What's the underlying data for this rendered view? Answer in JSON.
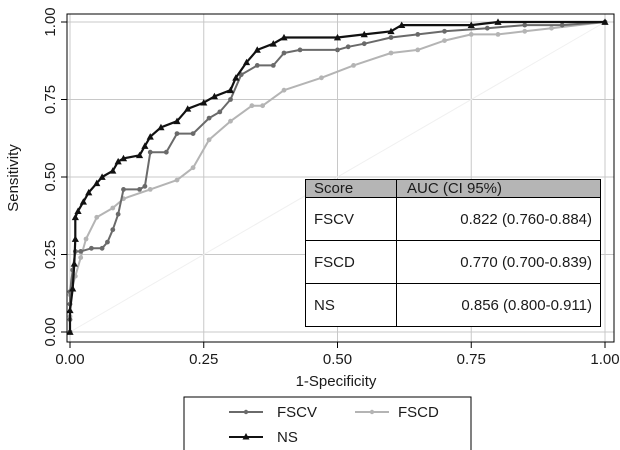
{
  "chart_data": {
    "type": "line",
    "title": "",
    "xlabel": "1-Specificity",
    "ylabel": "Sensitivity",
    "xlim": [
      0,
      1
    ],
    "ylim": [
      0,
      1
    ],
    "x_ticks": [
      "0.00",
      "0.25",
      "0.50",
      "0.75",
      "1.00"
    ],
    "y_ticks": [
      "0.00",
      "0.25",
      "0.50",
      "0.75",
      "1.00"
    ],
    "grid": true,
    "legend_position": "bottom",
    "series": [
      {
        "name": "FSCV",
        "color": "#6a6a6a",
        "marker": "circle",
        "points": [
          [
            0,
            0
          ],
          [
            0,
            0.04
          ],
          [
            0,
            0.09
          ],
          [
            0,
            0.13
          ],
          [
            0.005,
            0.2
          ],
          [
            0.01,
            0.26
          ],
          [
            0.02,
            0.26
          ],
          [
            0.04,
            0.27
          ],
          [
            0.06,
            0.27
          ],
          [
            0.07,
            0.29
          ],
          [
            0.08,
            0.33
          ],
          [
            0.09,
            0.38
          ],
          [
            0.1,
            0.46
          ],
          [
            0.13,
            0.46
          ],
          [
            0.14,
            0.47
          ],
          [
            0.15,
            0.58
          ],
          [
            0.18,
            0.58
          ],
          [
            0.2,
            0.64
          ],
          [
            0.23,
            0.64
          ],
          [
            0.26,
            0.69
          ],
          [
            0.28,
            0.71
          ],
          [
            0.3,
            0.75
          ],
          [
            0.32,
            0.83
          ],
          [
            0.35,
            0.86
          ],
          [
            0.38,
            0.86
          ],
          [
            0.4,
            0.9
          ],
          [
            0.43,
            0.91
          ],
          [
            0.5,
            0.91
          ],
          [
            0.52,
            0.92
          ],
          [
            0.55,
            0.93
          ],
          [
            0.6,
            0.95
          ],
          [
            0.65,
            0.96
          ],
          [
            0.7,
            0.97
          ],
          [
            0.78,
            0.98
          ],
          [
            0.85,
            0.99
          ],
          [
            0.92,
            0.99
          ],
          [
            1,
            1
          ]
        ]
      },
      {
        "name": "FSCD",
        "color": "#b4b4b4",
        "marker": "circle",
        "points": [
          [
            0,
            0
          ],
          [
            0,
            0.05
          ],
          [
            0,
            0.12
          ],
          [
            0.01,
            0.18
          ],
          [
            0.02,
            0.24
          ],
          [
            0.03,
            0.3
          ],
          [
            0.05,
            0.37
          ],
          [
            0.08,
            0.4
          ],
          [
            0.1,
            0.43
          ],
          [
            0.15,
            0.46
          ],
          [
            0.2,
            0.49
          ],
          [
            0.23,
            0.53
          ],
          [
            0.26,
            0.62
          ],
          [
            0.3,
            0.68
          ],
          [
            0.34,
            0.73
          ],
          [
            0.36,
            0.73
          ],
          [
            0.4,
            0.78
          ],
          [
            0.47,
            0.82
          ],
          [
            0.53,
            0.86
          ],
          [
            0.6,
            0.9
          ],
          [
            0.65,
            0.91
          ],
          [
            0.7,
            0.94
          ],
          [
            0.75,
            0.96
          ],
          [
            0.8,
            0.96
          ],
          [
            0.85,
            0.97
          ],
          [
            0.9,
            0.98
          ],
          [
            1,
            1
          ]
        ]
      },
      {
        "name": "NS",
        "color": "#111111",
        "marker": "triangle",
        "points": [
          [
            0,
            0
          ],
          [
            0,
            0.07
          ],
          [
            0.005,
            0.14
          ],
          [
            0.008,
            0.22
          ],
          [
            0.01,
            0.3
          ],
          [
            0.01,
            0.37
          ],
          [
            0.015,
            0.39
          ],
          [
            0.025,
            0.42
          ],
          [
            0.035,
            0.45
          ],
          [
            0.05,
            0.48
          ],
          [
            0.06,
            0.5
          ],
          [
            0.08,
            0.52
          ],
          [
            0.09,
            0.55
          ],
          [
            0.1,
            0.56
          ],
          [
            0.13,
            0.57
          ],
          [
            0.14,
            0.6
          ],
          [
            0.15,
            0.63
          ],
          [
            0.17,
            0.66
          ],
          [
            0.2,
            0.68
          ],
          [
            0.22,
            0.72
          ],
          [
            0.25,
            0.74
          ],
          [
            0.27,
            0.76
          ],
          [
            0.3,
            0.78
          ],
          [
            0.31,
            0.82
          ],
          [
            0.33,
            0.87
          ],
          [
            0.35,
            0.91
          ],
          [
            0.38,
            0.93
          ],
          [
            0.4,
            0.95
          ],
          [
            0.5,
            0.95
          ],
          [
            0.55,
            0.96
          ],
          [
            0.6,
            0.97
          ],
          [
            0.62,
            0.99
          ],
          [
            0.75,
            0.99
          ],
          [
            0.8,
            1
          ],
          [
            1,
            1
          ]
        ]
      }
    ],
    "reference_line": [
      [
        0,
        0
      ],
      [
        1,
        1
      ]
    ]
  },
  "auc_table": {
    "headers": [
      "Score",
      "AUC (CI 95%)"
    ],
    "rows": [
      {
        "score": "FSCV",
        "auc": "0.822 (0.760-0.884)"
      },
      {
        "score": "FSCD",
        "auc": "0.770 (0.700-0.839)"
      },
      {
        "score": "NS",
        "auc": "0.856 (0.800-0.911)"
      }
    ]
  }
}
